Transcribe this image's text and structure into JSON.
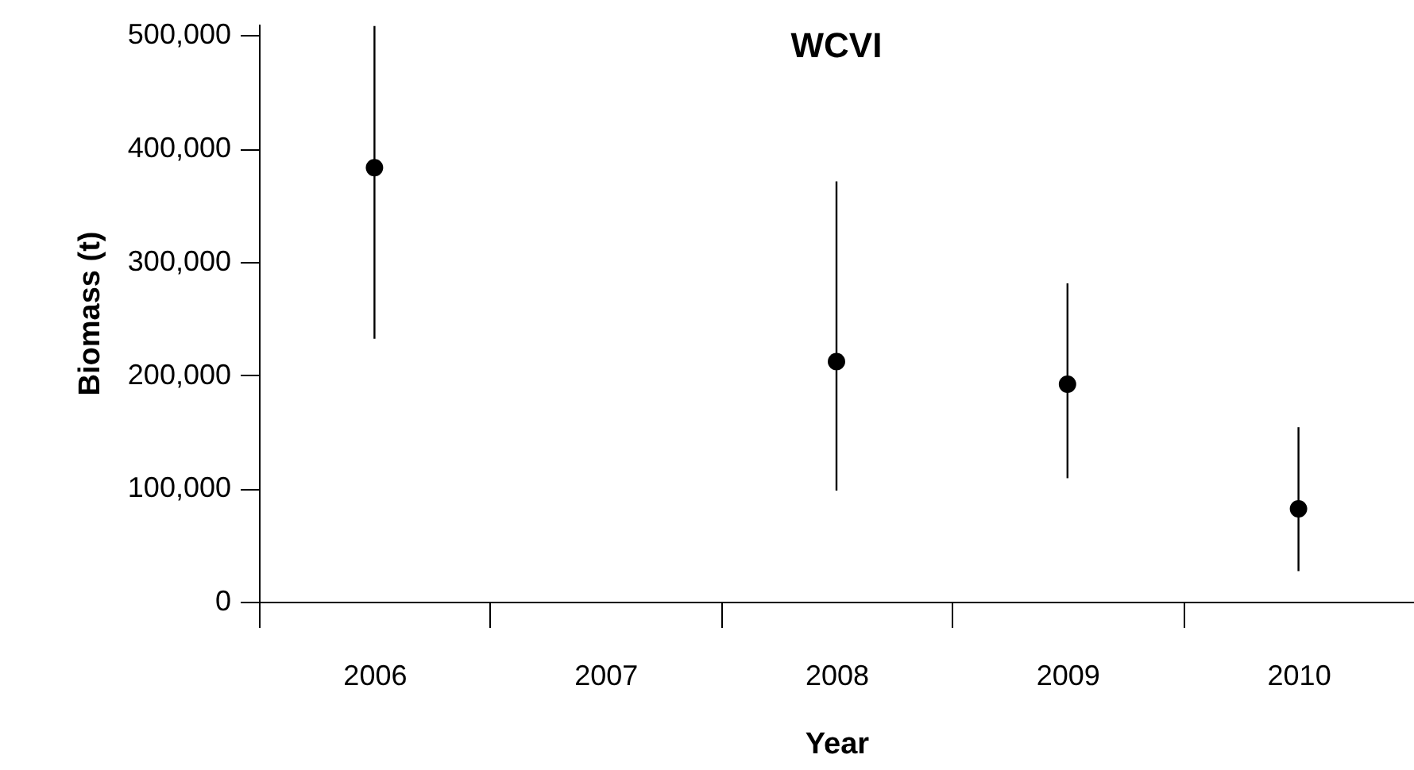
{
  "chart_data": {
    "type": "scatter",
    "title": "WCVI",
    "xlabel": "Year",
    "ylabel": "Biomass (t)",
    "categories": [
      "2006",
      "2007",
      "2008",
      "2009",
      "2010"
    ],
    "values": [
      383000,
      null,
      212000,
      192000,
      82000
    ],
    "errors": [
      [
        232000,
        508000
      ],
      null,
      [
        98000,
        371000
      ],
      [
        109000,
        281000
      ],
      [
        27000,
        154000
      ]
    ],
    "color": "#000000",
    "marker": "circle",
    "ylim": [
      0,
      510000
    ],
    "yticks": [
      0,
      {
        "value": 100000,
        "label": "100,000"
      },
      {
        "value": 200000,
        "label": "200,000"
      },
      {
        "value": 300000,
        "label": "300,000"
      },
      {
        "value": 400000,
        "label": "400,000"
      },
      {
        "value": 500000,
        "label": "500,000"
      }
    ],
    "grid": false
  }
}
